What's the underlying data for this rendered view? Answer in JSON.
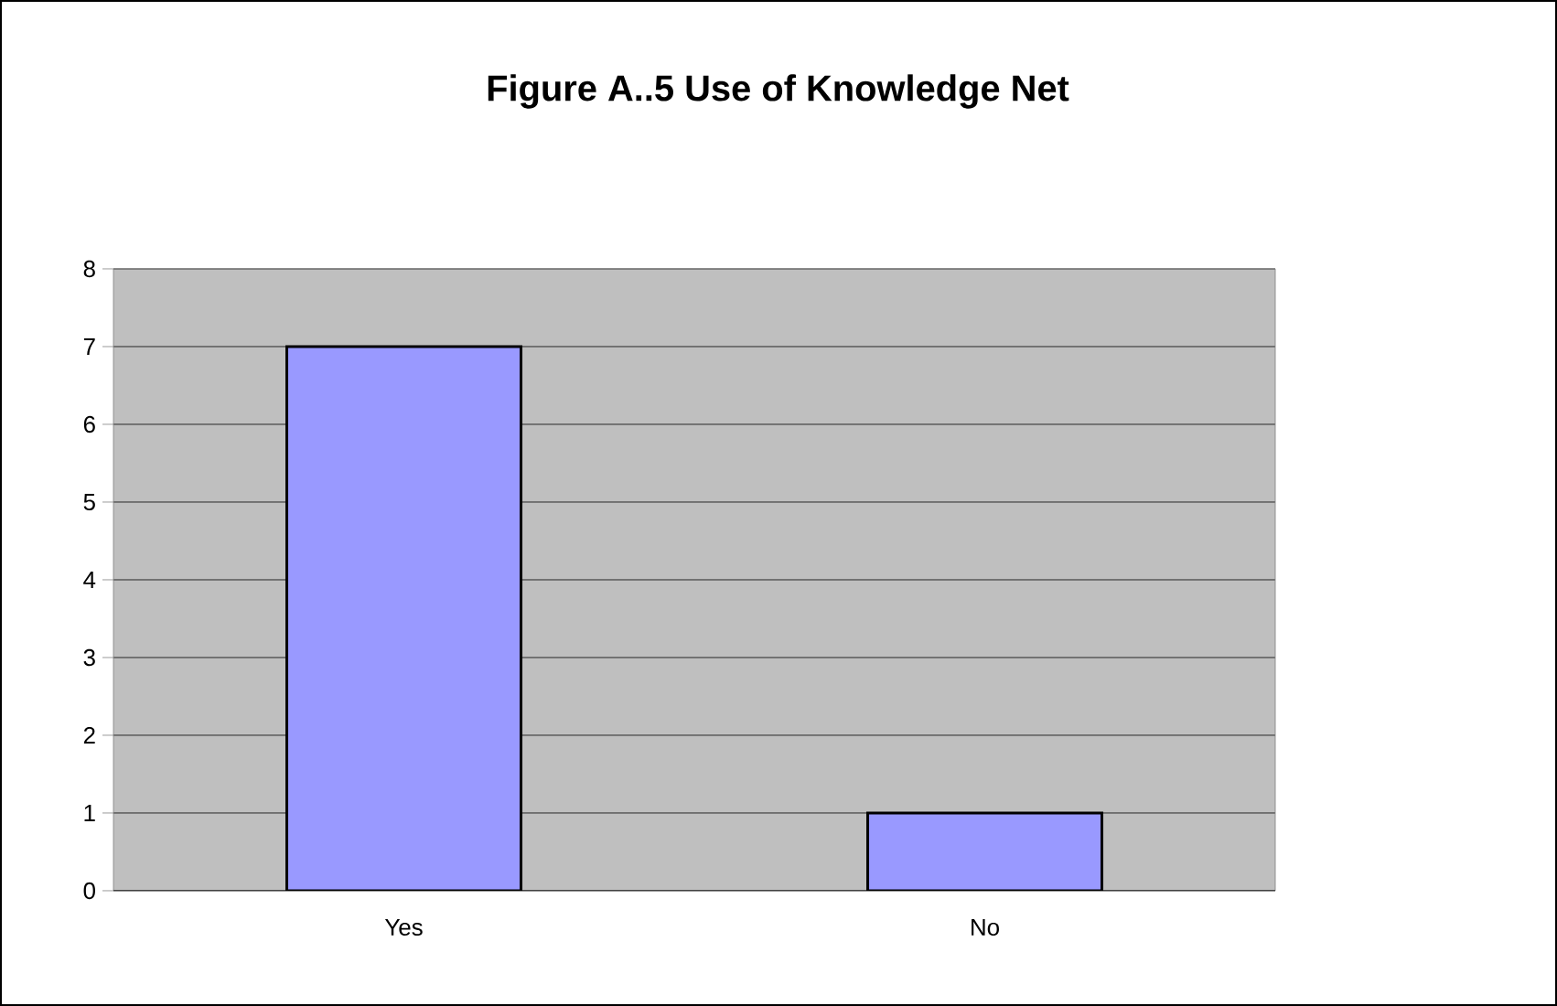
{
  "chart_data": {
    "type": "bar",
    "title": "Figure A..5  Use of Knowledge Net",
    "categories": [
      "Yes",
      "No"
    ],
    "values": [
      7,
      1
    ],
    "color": "#9999ff",
    "ylim": [
      0,
      8
    ],
    "yticks": [
      0,
      1,
      2,
      3,
      4,
      5,
      6,
      7,
      8
    ],
    "grid": "y"
  }
}
